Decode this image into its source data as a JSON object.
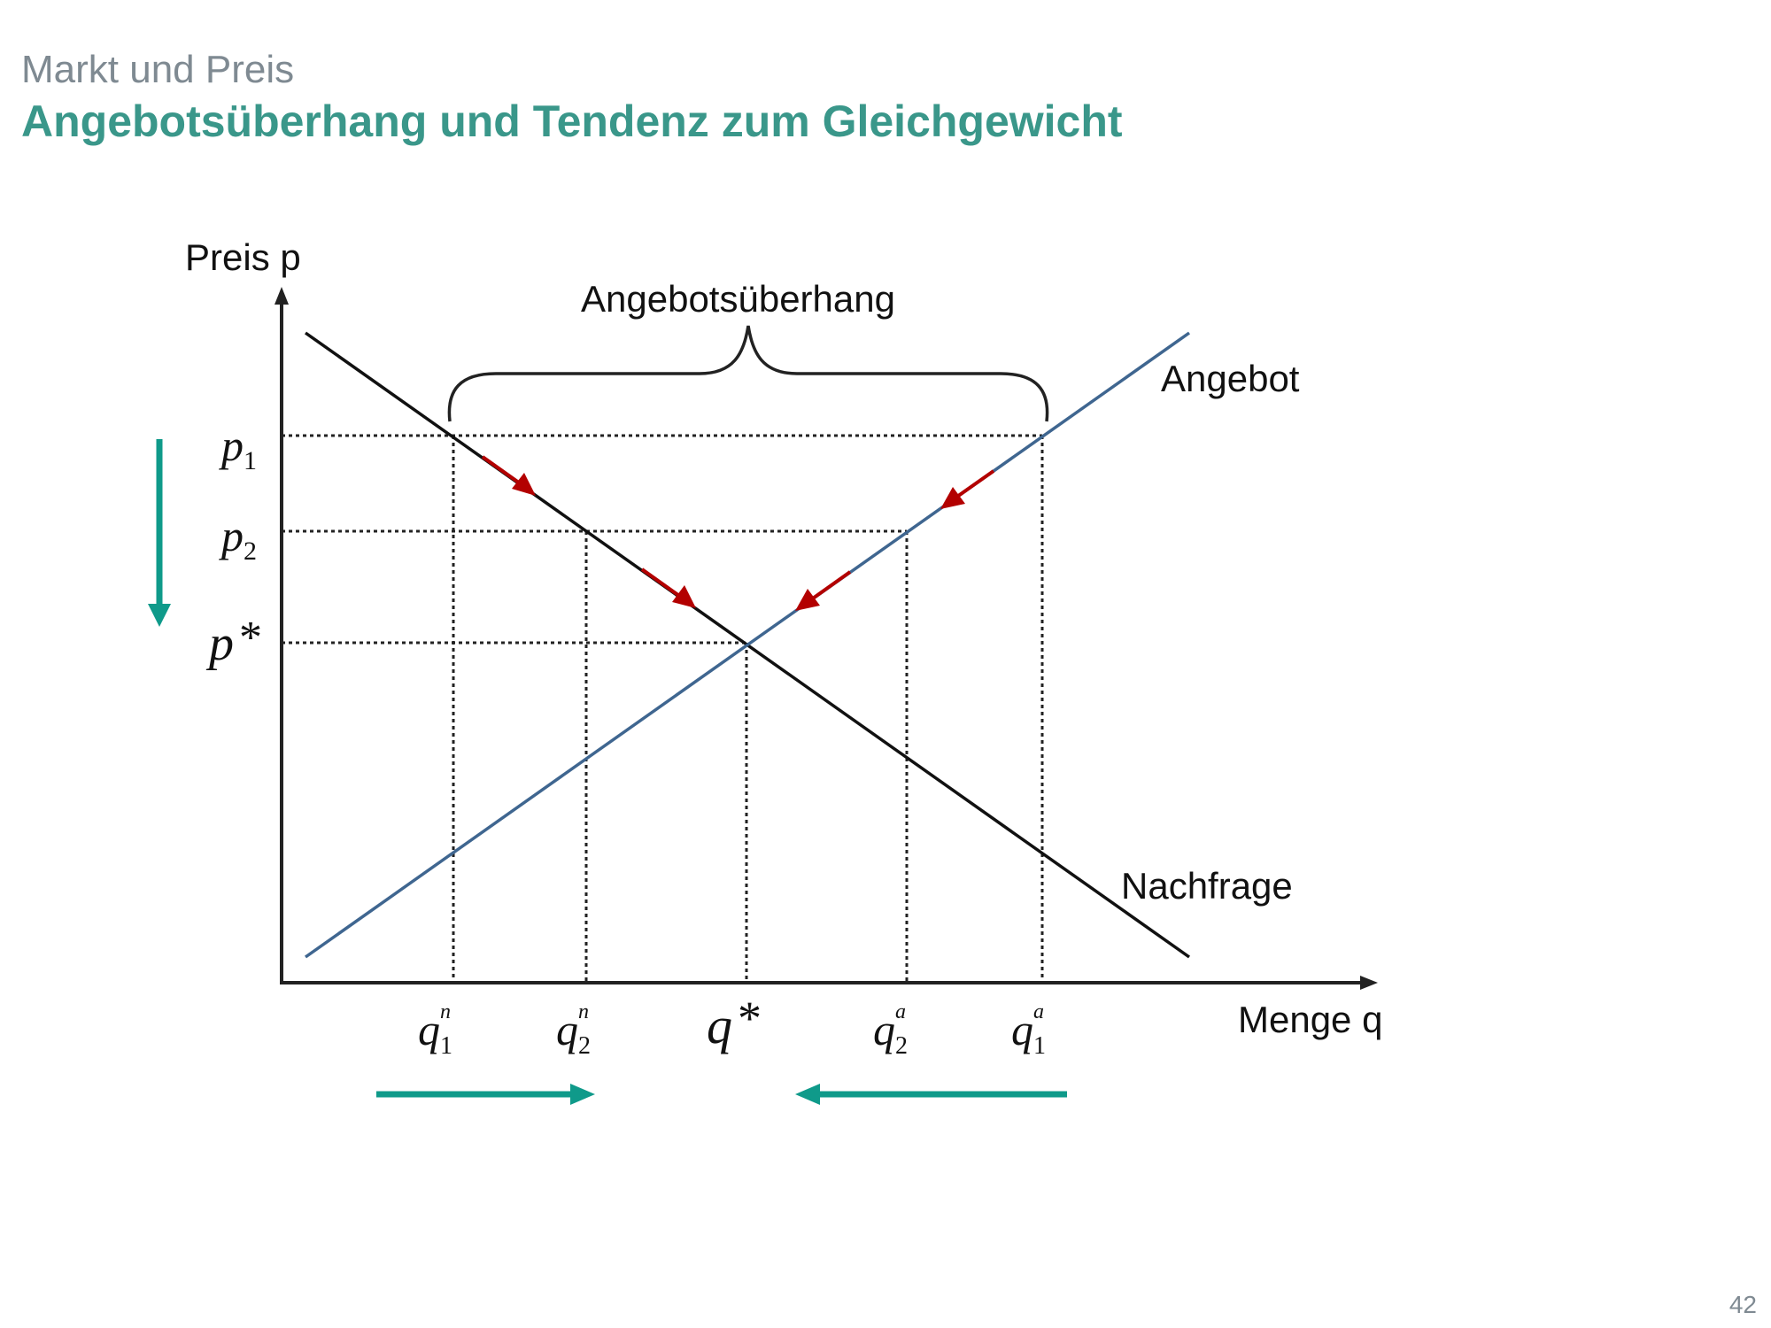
{
  "header": {
    "subtitle": "Markt und Preis",
    "title": "Angebotsüberhang und Tendenz zum Gleichgewicht"
  },
  "page_number": "42",
  "diagram": {
    "y_axis_label": "Preis p",
    "x_axis_label": "Menge q",
    "brace_label": "Angebotsüberhang",
    "supply_label": "Angebot",
    "demand_label": "Nachfrage",
    "price_labels": [
      {
        "base": "p",
        "sub": "1"
      },
      {
        "base": "p",
        "sub": "2"
      },
      {
        "base": "p",
        "sub": "*"
      }
    ],
    "quantity_labels": [
      {
        "base": "q",
        "sub": "1",
        "sup": "n"
      },
      {
        "base": "q",
        "sub": "2",
        "sup": "n"
      },
      {
        "base": "q",
        "sub": "*",
        "sup": ""
      },
      {
        "base": "q",
        "sub": "2",
        "sup": "a"
      },
      {
        "base": "q",
        "sub": "1",
        "sup": "a"
      }
    ],
    "colors": {
      "supply": "#3f6690",
      "demand": "#111111",
      "adjustment_arrows": "#b30000",
      "direction_arrows": "#0f9a8a",
      "title": "#3a978a"
    }
  }
}
